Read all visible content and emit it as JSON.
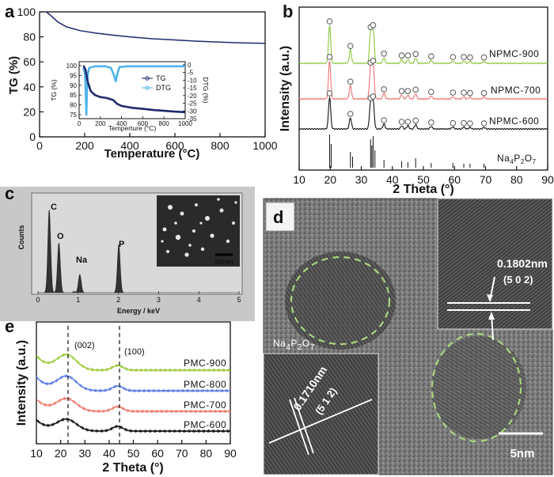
{
  "figure": {
    "panel_a": {
      "label": "a",
      "xlabel": "Temperature (°C)",
      "ylabel": "TG (%)",
      "xticks": [
        "0",
        "200",
        "400",
        "600",
        "800",
        "1000"
      ],
      "yticks": [
        "0",
        "20",
        "40",
        "60",
        "80",
        "100"
      ],
      "inset": {
        "ylabel_left": "TG (%)",
        "ylabel_right": "DTG (%)",
        "xlabel": "Temperture (°C)",
        "xticks": [
          "0",
          "200",
          "400",
          "600",
          "800",
          "1000"
        ],
        "yticks_left": [
          "75",
          "80",
          "85",
          "90",
          "95",
          "100"
        ],
        "yticks_right": [
          "0",
          "-5",
          "-10",
          "-15",
          "-20",
          "-25",
          "-30",
          "-35"
        ],
        "legend": [
          "TG",
          "DTG"
        ]
      }
    },
    "panel_b": {
      "label": "b",
      "xlabel": "2 Theta (°)",
      "ylabel": "Intensity (a.u.)",
      "xticks": [
        "10",
        "20",
        "30",
        "40",
        "50",
        "60",
        "70",
        "80",
        "90"
      ],
      "series_labels": [
        "NPMC-900",
        "NPMC-700",
        "NPMC-600"
      ],
      "reference_label_main": "Na",
      "reference_sub1": "4",
      "reference_mid": "P",
      "reference_sub2": "2",
      "reference_tail": "O",
      "reference_sub3": "7"
    },
    "panel_c": {
      "label": "c",
      "ylabel": "Counts",
      "xlabel": "Energy / keV",
      "xticks": [
        "0",
        "1",
        "2",
        "3",
        "4",
        "5"
      ],
      "peaks": [
        "C",
        "O",
        "Na",
        "P"
      ],
      "scalebar": "50nm"
    },
    "panel_d": {
      "label": "d",
      "spacing1": "0.1802nm",
      "plane1": "(5 0 2)",
      "spacing2": "0.1710nm",
      "plane2": "(5 1 2)",
      "phase_main": "Na",
      "phase_sub1": "4",
      "phase_mid": "P",
      "phase_sub2": "2",
      "phase_tail": "O",
      "phase_sub3": "7",
      "scalebar": "5nm"
    },
    "panel_e": {
      "label": "e",
      "xlabel": "2 Theta (°)",
      "ylabel": "Intensity (a.u.)",
      "xticks": [
        "10",
        "20",
        "30",
        "40",
        "50",
        "60",
        "70",
        "80",
        "90"
      ],
      "annotations": [
        "(002)",
        "(100)"
      ],
      "series_labels": [
        "PMC-900",
        "PMC-800",
        "PMC-700",
        "PMC-600"
      ]
    }
  },
  "colors": {
    "tg": "#1f2a6b",
    "dtg": "#4fb3e8",
    "npmc900": "#8cc63f",
    "npmc700": "#f07070",
    "npmc600": "#111111",
    "pmc900": "#9ccc3c",
    "pmc800": "#5b7be8",
    "pmc700": "#f07a6e",
    "pmc600": "#111111"
  },
  "chart_data": [
    {
      "type": "line",
      "title": "",
      "xlabel": "Temperature (°C)",
      "ylabel": "TG (%)",
      "xlim": [
        0,
        1000
      ],
      "ylim": [
        0,
        100
      ],
      "series": [
        {
          "name": "TG",
          "x": [
            30,
            50,
            80,
            120,
            180,
            250,
            320,
            400,
            500,
            600,
            700,
            800,
            900,
            1000
          ],
          "values": [
            100,
            97,
            92,
            88,
            85,
            83,
            81.5,
            80,
            78.5,
            77.5,
            76.5,
            75.8,
            75.2,
            74.8
          ]
        }
      ]
    },
    {
      "type": "line",
      "title": "",
      "xlabel": "2 Theta (°)",
      "ylabel": "Intensity (a.u.)",
      "xlim": [
        10,
        90
      ],
      "series": [
        {
          "name": "NPMC-900",
          "peaks": [
            19.8,
            26.5,
            33.0,
            33.8,
            37.3,
            43.0,
            45.0,
            47.5,
            52.5,
            59.5,
            63.0,
            65.0,
            69.5
          ]
        },
        {
          "name": "NPMC-700",
          "peaks": [
            19.8,
            26.5,
            33.0,
            33.8,
            37.3,
            43.0,
            45.0,
            47.5,
            52.5,
            59.5,
            63.0,
            65.0,
            69.5
          ]
        },
        {
          "name": "NPMC-600",
          "peaks": [
            19.8,
            26.5,
            33.0,
            33.8,
            37.3,
            43.0,
            45.0,
            47.5,
            52.5,
            59.5,
            63.0,
            65.0,
            69.5
          ]
        }
      ]
    },
    {
      "type": "bar",
      "title": "",
      "xlabel": "Energy / keV",
      "ylabel": "Counts",
      "xlim": [
        0,
        5
      ],
      "categories": [
        "C",
        "O",
        "Na",
        "P"
      ],
      "x": [
        0.28,
        0.52,
        1.04,
        2.01
      ],
      "values": [
        100,
        60,
        22,
        58
      ]
    },
    {
      "type": "line",
      "title": "",
      "xlabel": "2 Theta (°)",
      "ylabel": "Intensity (a.u.)",
      "xlim": [
        10,
        90
      ],
      "series": [
        {
          "name": "PMC-900",
          "peaks": [
            22.5,
            43.5
          ]
        },
        {
          "name": "PMC-800",
          "peaks": [
            22.5,
            43.5
          ]
        },
        {
          "name": "PMC-700",
          "peaks": [
            22.5,
            43.5
          ]
        },
        {
          "name": "PMC-600",
          "peaks": [
            22.5,
            43.5
          ]
        }
      ],
      "annotations": [
        "(002)",
        "(100)"
      ]
    }
  ]
}
